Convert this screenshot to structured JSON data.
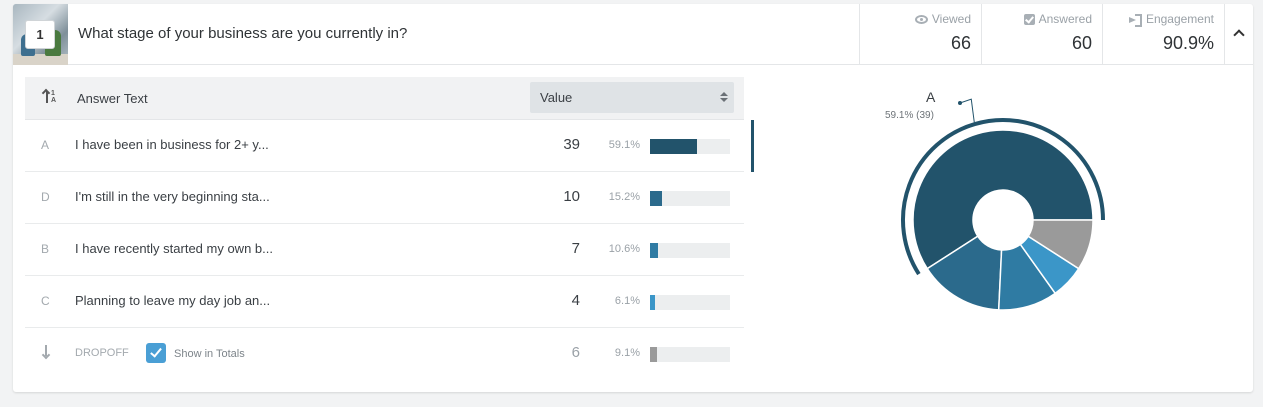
{
  "question": {
    "number": "1",
    "text": "What stage of your business are you currently in?"
  },
  "stats": {
    "viewed": {
      "label": "Viewed",
      "value": "66",
      "icon": "eye-icon"
    },
    "answered": {
      "label": "Answered",
      "value": "60",
      "icon": "check-square-icon"
    },
    "engagement": {
      "label": "Engagement",
      "value": "90.9%",
      "icon": "enter-icon"
    }
  },
  "table": {
    "col_answer": "Answer Text",
    "col_value": "Value",
    "rows": [
      {
        "letter": "A",
        "text": "I have been in business for 2+ y...",
        "count": "39",
        "pct": "59.1%",
        "fraction": 0.591,
        "color": "#22536b"
      },
      {
        "letter": "D",
        "text": "I'm still in the very beginning sta...",
        "count": "10",
        "pct": "15.2%",
        "fraction": 0.152,
        "color": "#2b6a8c"
      },
      {
        "letter": "B",
        "text": "I have recently started my own b...",
        "count": "7",
        "pct": "10.6%",
        "fraction": 0.106,
        "color": "#2f7ba3"
      },
      {
        "letter": "C",
        "text": "Planning to leave my day job an...",
        "count": "4",
        "pct": "6.1%",
        "fraction": 0.061,
        "color": "#3b96c8"
      }
    ],
    "dropoff": {
      "label": "DROPOFF",
      "show_in_totals": "Show in Totals",
      "checked": true,
      "count": "6",
      "pct": "9.1%",
      "fraction": 0.091,
      "color": "#9a9a9a"
    }
  },
  "chart_data": {
    "type": "pie",
    "donut": true,
    "categories": [
      "A",
      "D",
      "B",
      "C",
      "DROPOFF"
    ],
    "values": [
      39,
      10,
      7,
      4,
      6
    ],
    "colors": [
      "#22536b",
      "#2b6a8c",
      "#2f7ba3",
      "#3b96c8",
      "#9a9a9a"
    ],
    "highlighted": "A",
    "callout": {
      "letter": "A",
      "label": "59.1% (39)"
    }
  }
}
